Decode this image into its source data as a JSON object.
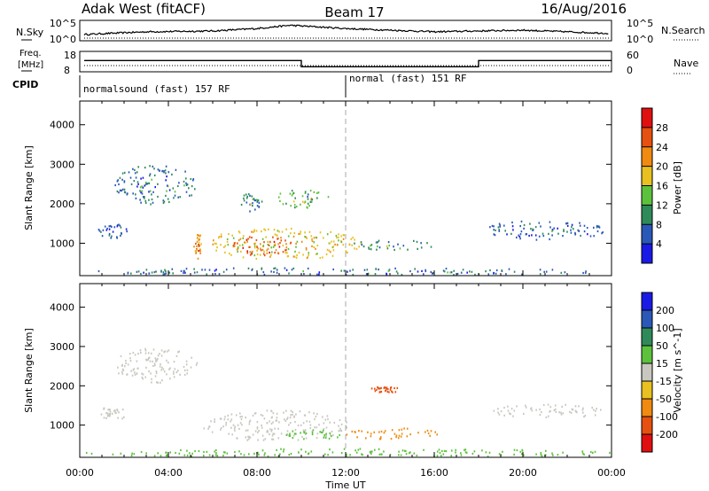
{
  "header": {
    "station": "Adak West (fitACF)",
    "beam": "Beam 17",
    "date": "16/Aug/2016"
  },
  "top_panels": {
    "nsky_label": "N.Sky",
    "nsky_tick_hi": "10^5",
    "nsky_tick_lo": "10^0",
    "nsearch_tick_hi": "10^5",
    "nsearch_tick_lo": "10^0",
    "nsearch_label": "N.Search",
    "freq_label_1": "Freq.",
    "freq_label_2": "[MHz]",
    "freq_tick_hi": "18",
    "freq_tick_lo": "8",
    "nave_tick_hi": "60",
    "nave_tick_lo": "0",
    "nave_label": "Nave",
    "cpid_label": "CPID",
    "mode_1": "normalsound (fast) 157 RF",
    "mode_2": "normal (fast) 151 RF"
  },
  "x_axis": {
    "title": "Time UT",
    "ticks": [
      "00:00",
      "04:00",
      "08:00",
      "12:00",
      "16:00",
      "20:00",
      "00:00"
    ]
  },
  "y_axis": {
    "title": "Slant Range [km]",
    "ticks": [
      "1000",
      "2000",
      "3000",
      "4000"
    ]
  },
  "power_scale": {
    "title": "Power [dB]",
    "ticks": [
      "4",
      "8",
      "12",
      "16",
      "20",
      "24",
      "28"
    ],
    "colors": [
      "#1a1ae6",
      "#2a58b8",
      "#2f8a5a",
      "#5cc23c",
      "#e8c020",
      "#f08a10",
      "#e65010",
      "#e01010"
    ]
  },
  "velocity_scale": {
    "title": "Velocity [m s^-1]",
    "ticks": [
      "200",
      "100",
      "50",
      "15",
      "-15",
      "-50",
      "-100",
      "-200"
    ],
    "colors": [
      "#1a1ae6",
      "#2a58b8",
      "#2f8a5a",
      "#5cc23c",
      "#c8c8c0",
      "#e8c020",
      "#f08a10",
      "#e65010",
      "#e01010"
    ]
  },
  "chart_data": [
    {
      "type": "line",
      "title": "N.Sky / N.Search",
      "x_hours": [
        0,
        3,
        6,
        8,
        9.5,
        12,
        16,
        20,
        24
      ],
      "nsky_log": [
        1.5,
        2.2,
        2.4,
        3.0,
        3.8,
        3.0,
        2.2,
        2.6,
        1.8
      ],
      "ylim": [
        0,
        5
      ]
    },
    {
      "type": "line",
      "title": "Freq. / Nave",
      "freq_mhz_steps": [
        {
          "x0": 0.2,
          "x1": 10,
          "value": 13.5
        },
        {
          "x0": 10,
          "x1": 18,
          "value": 10.5
        },
        {
          "x0": 18,
          "x1": 24,
          "value": 13.5
        }
      ],
      "ylim": [
        8,
        18
      ]
    },
    {
      "type": "heatmap",
      "title": "Power [dB]",
      "xlabel": "Time UT",
      "ylabel": "Slant Range [km]",
      "xlim": [
        0,
        24
      ],
      "ylim": [
        180,
        4600
      ],
      "blobs": [
        {
          "t0": 5.5,
          "t1": 12.7,
          "r0": 600,
          "r1": 1400,
          "value": 18
        },
        {
          "t0": 6.8,
          "t1": 9.5,
          "r0": 700,
          "r1": 1200,
          "value": 26
        },
        {
          "t0": 12.2,
          "t1": 16.0,
          "r0": 850,
          "r1": 1100,
          "value": 10
        },
        {
          "t0": 5.1,
          "t1": 5.5,
          "r0": 600,
          "r1": 1300,
          "value": 22
        },
        {
          "t0": 1.5,
          "t1": 5.3,
          "r0": 2000,
          "r1": 3000,
          "value": 8
        },
        {
          "t0": 0.8,
          "t1": 2.3,
          "r0": 1150,
          "r1": 1500,
          "value": 6
        },
        {
          "t0": 7.2,
          "t1": 8.2,
          "r0": 1800,
          "r1": 2300,
          "value": 9
        },
        {
          "t0": 8.8,
          "t1": 11.3,
          "r0": 1900,
          "r1": 2400,
          "value": 13
        },
        {
          "t0": 18.2,
          "t1": 23.8,
          "r0": 1100,
          "r1": 1600,
          "value": 6
        },
        {
          "t0": 0,
          "t1": 24,
          "r0": 200,
          "r1": 400,
          "value": 7
        }
      ]
    },
    {
      "type": "heatmap",
      "title": "Velocity [m s^-1]",
      "xlabel": "Time UT",
      "ylabel": "Slant Range [km]",
      "xlim": [
        0,
        24
      ],
      "ylim": [
        180,
        4600
      ],
      "blobs": [
        {
          "t0": 5.5,
          "t1": 12.2,
          "r0": 600,
          "r1": 1400,
          "value": 0
        },
        {
          "t0": 9.0,
          "t1": 11.8,
          "r0": 650,
          "r1": 900,
          "value": 25
        },
        {
          "t0": 12.0,
          "t1": 16.3,
          "r0": 650,
          "r1": 950,
          "value": -60
        },
        {
          "t0": 13.0,
          "t1": 14.6,
          "r0": 1850,
          "r1": 2000,
          "value": -180
        },
        {
          "t0": 1.5,
          "t1": 5.3,
          "r0": 2100,
          "r1": 3000,
          "value": 0
        },
        {
          "t0": 0.8,
          "t1": 2.3,
          "r0": 1150,
          "r1": 1500,
          "value": 0
        },
        {
          "t0": 18.5,
          "t1": 23.8,
          "r0": 1200,
          "r1": 1550,
          "value": 0
        },
        {
          "t0": 0,
          "t1": 24,
          "r0": 200,
          "r1": 420,
          "value": 30
        }
      ]
    }
  ]
}
